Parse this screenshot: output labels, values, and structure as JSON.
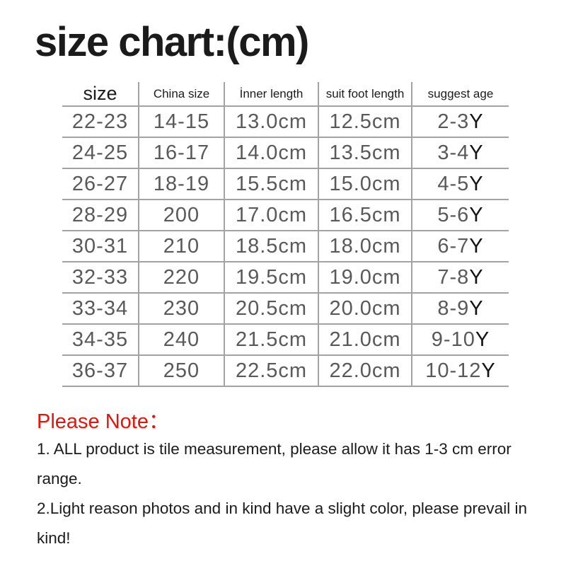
{
  "title": "size chart:(cm)",
  "colors": {
    "accent_red": "#e9130b",
    "data_gray": "#59595c",
    "line_gray": "#a3a3a3",
    "text_black": "#1b1b1b"
  },
  "table": {
    "headers": [
      "size",
      "China size",
      "İnner length",
      "suit foot length",
      "suggest age"
    ],
    "rows": [
      {
        "size": "22-23",
        "china_size": "14-15",
        "inner_length": "13.0cm",
        "suit_foot_length": "12.5cm",
        "age": "2-3",
        "age_suffix": "Y"
      },
      {
        "size": "24-25",
        "china_size": "16-17",
        "inner_length": "14.0cm",
        "suit_foot_length": "13.5cm",
        "age": "3-4",
        "age_suffix": "Y"
      },
      {
        "size": "26-27",
        "china_size": "18-19",
        "inner_length": "15.5cm",
        "suit_foot_length": "15.0cm",
        "age": "4-5",
        "age_suffix": "Y"
      },
      {
        "size": "28-29",
        "china_size": "200",
        "inner_length": "17.0cm",
        "suit_foot_length": "16.5cm",
        "age": "5-6",
        "age_suffix": "Y"
      },
      {
        "size": "30-31",
        "china_size": "210",
        "inner_length": "18.5cm",
        "suit_foot_length": "18.0cm",
        "age": "6-7",
        "age_suffix": "Y"
      },
      {
        "size": "32-33",
        "china_size": "220",
        "inner_length": "19.5cm",
        "suit_foot_length": "19.0cm",
        "age": "7-8",
        "age_suffix": "Y"
      },
      {
        "size": "33-34",
        "china_size": "230",
        "inner_length": "20.5cm",
        "suit_foot_length": "20.0cm",
        "age": "8-9",
        "age_suffix": "Y"
      },
      {
        "size": "34-35",
        "china_size": "240",
        "inner_length": "21.5cm",
        "suit_foot_length": "21.0cm",
        "age": "9-10",
        "age_suffix": "Y"
      },
      {
        "size": "36-37",
        "china_size": "250",
        "inner_length": "22.5cm",
        "suit_foot_length": "22.0cm",
        "age": "10-12",
        "age_suffix": "Y"
      }
    ]
  },
  "note": {
    "heading": "Please Note：",
    "items": [
      "1. ALL product is tile measurement, please allow it has 1-3 cm error range.",
      "2.Light reason photos and in kind have a slight color, please prevail in kind!"
    ]
  }
}
